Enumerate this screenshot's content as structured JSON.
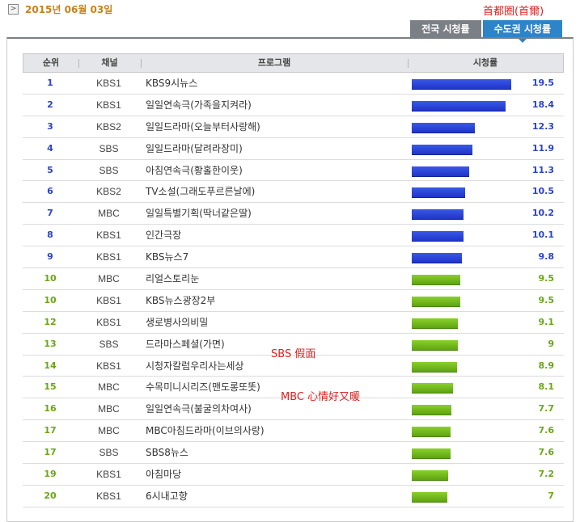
{
  "header": {
    "date": "2015년 06월 03일",
    "region_annotation": "首都圈(首爾)"
  },
  "tabs": [
    {
      "label": "전국 시청률",
      "active": false
    },
    {
      "label": "수도권 시청률",
      "active": true
    }
  ],
  "table": {
    "columns": [
      "순위",
      "채널",
      "프로그램",
      "시청률"
    ],
    "rows": [
      {
        "rank": "1",
        "channel": "KBS1",
        "program": "KBS9시뉴스",
        "rating": "19.5",
        "rating_value": 19.5,
        "color": "blue"
      },
      {
        "rank": "2",
        "channel": "KBS1",
        "program": "일일연속극(가족을지켜라)",
        "rating": "18.4",
        "rating_value": 18.4,
        "color": "blue"
      },
      {
        "rank": "3",
        "channel": "KBS2",
        "program": "일일드라마(오늘부터사랑해)",
        "rating": "12.3",
        "rating_value": 12.3,
        "color": "blue"
      },
      {
        "rank": "4",
        "channel": "SBS",
        "program": "일일드라마(달려라장미)",
        "rating": "11.9",
        "rating_value": 11.9,
        "color": "blue"
      },
      {
        "rank": "5",
        "channel": "SBS",
        "program": "아침연속극(황홀한이웃)",
        "rating": "11.3",
        "rating_value": 11.3,
        "color": "blue"
      },
      {
        "rank": "6",
        "channel": "KBS2",
        "program": "TV소설(그래도푸르른날에)",
        "rating": "10.5",
        "rating_value": 10.5,
        "color": "blue"
      },
      {
        "rank": "7",
        "channel": "MBC",
        "program": "일일특별기획(딱너같은딸)",
        "rating": "10.2",
        "rating_value": 10.2,
        "color": "blue"
      },
      {
        "rank": "8",
        "channel": "KBS1",
        "program": "인간극장",
        "rating": "10.1",
        "rating_value": 10.1,
        "color": "blue"
      },
      {
        "rank": "9",
        "channel": "KBS1",
        "program": "KBS뉴스7",
        "rating": "9.8",
        "rating_value": 9.8,
        "color": "blue"
      },
      {
        "rank": "10",
        "channel": "MBC",
        "program": "리얼스토리눈",
        "rating": "9.5",
        "rating_value": 9.5,
        "color": "green"
      },
      {
        "rank": "10",
        "channel": "KBS1",
        "program": "KBS뉴스광장2부",
        "rating": "9.5",
        "rating_value": 9.5,
        "color": "green"
      },
      {
        "rank": "12",
        "channel": "KBS1",
        "program": "생로병사의비밀",
        "rating": "9.1",
        "rating_value": 9.1,
        "color": "green"
      },
      {
        "rank": "13",
        "channel": "SBS",
        "program": "드라마스페셜(가면)",
        "rating": "9",
        "rating_value": 9,
        "color": "green",
        "annotation": "SBS 假面"
      },
      {
        "rank": "14",
        "channel": "KBS1",
        "program": "시청자칼럼우리사는세상",
        "rating": "8.9",
        "rating_value": 8.9,
        "color": "green"
      },
      {
        "rank": "15",
        "channel": "MBC",
        "program": "수목미니시리즈(맨도롱또똣)",
        "rating": "8.1",
        "rating_value": 8.1,
        "color": "green",
        "annotation": "MBC 心情好又暖"
      },
      {
        "rank": "16",
        "channel": "MBC",
        "program": "일일연속극(불굴의차여사)",
        "rating": "7.7",
        "rating_value": 7.7,
        "color": "green"
      },
      {
        "rank": "17",
        "channel": "MBC",
        "program": "MBC아침드라마(이브의사랑)",
        "rating": "7.6",
        "rating_value": 7.6,
        "color": "green"
      },
      {
        "rank": "17",
        "channel": "SBS",
        "program": "SBS8뉴스",
        "rating": "7.6",
        "rating_value": 7.6,
        "color": "green"
      },
      {
        "rank": "19",
        "channel": "KBS1",
        "program": "아침마당",
        "rating": "7.2",
        "rating_value": 7.2,
        "color": "green"
      },
      {
        "rank": "20",
        "channel": "KBS1",
        "program": "6시내고향",
        "rating": "7",
        "rating_value": 7,
        "color": "green"
      }
    ]
  },
  "colors": {
    "date": "#c6821a",
    "annotation": "#e02020",
    "tab_active": "#2d84c8",
    "tab_inactive": "#7b7f86",
    "rank_blue": "#2a44c8",
    "rank_green": "#6aa615"
  }
}
